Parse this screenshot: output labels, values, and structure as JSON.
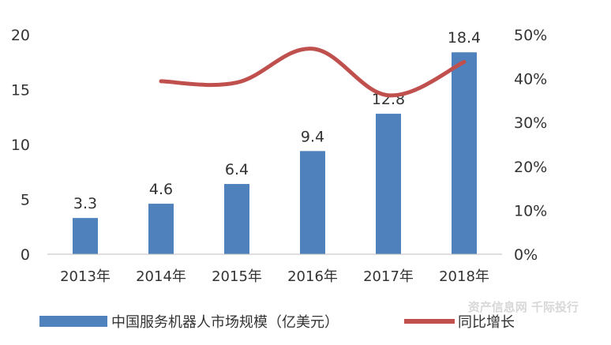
{
  "chart_data": {
    "type": "bar",
    "categories": [
      "2013年",
      "2014年",
      "2015年",
      "2016年",
      "2017年",
      "2018年"
    ],
    "series": [
      {
        "name": "中国服务机器人市场规模（亿美元）",
        "type": "bar",
        "axis": "left",
        "values": [
          3.3,
          4.6,
          6.4,
          9.4,
          12.8,
          18.4
        ],
        "data_labels": [
          "3.3",
          "4.6",
          "6.4",
          "9.4",
          "12.8",
          "18.4"
        ],
        "color": "#4f81bd"
      },
      {
        "name": "同比增长",
        "type": "line",
        "axis": "right",
        "values": [
          null,
          39.4,
          39.1,
          46.8,
          36.2,
          43.8
        ],
        "color": "#c0504d"
      }
    ],
    "y_left": {
      "ylim": [
        0,
        20
      ],
      "ticks": [
        "0",
        "5",
        "10",
        "15",
        "20"
      ]
    },
    "y_right": {
      "ylim": [
        0,
        50
      ],
      "ticks": [
        "0%",
        "10%",
        "20%",
        "30%",
        "40%",
        "50%"
      ]
    },
    "legend_position": "bottom",
    "grid": false
  },
  "watermark": "资产信息网 千际投行"
}
